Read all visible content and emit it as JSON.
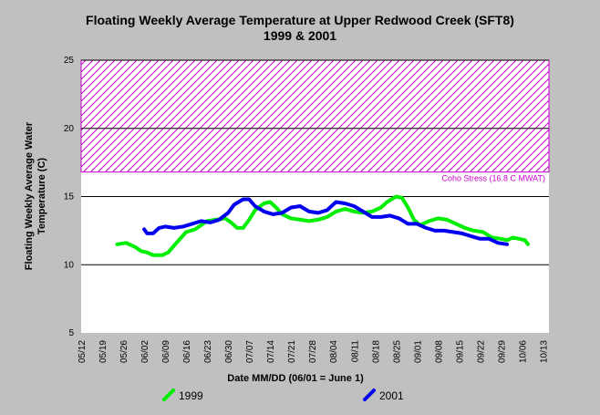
{
  "chart_data": {
    "type": "line",
    "title": "Floating Weekly Average Temperature at Upper Redwood Creek (SFT8)",
    "subtitle": "1999 & 2001",
    "xlabel": "Date MM/DD (06/01 = June 1)",
    "ylabel_lines": [
      "Floating Weekly Average Water",
      "Temperature (C)"
    ],
    "x_tick_labels": [
      "05/12",
      "05/19",
      "05/26",
      "06/02",
      "06/09",
      "06/16",
      "06/23",
      "06/30",
      "07/07",
      "07/14",
      "07/21",
      "07/28",
      "08/04",
      "08/11",
      "08/18",
      "08/25",
      "09/01",
      "09/08",
      "09/15",
      "09/22",
      "09/29",
      "10/06",
      "10/13"
    ],
    "x_range": [
      "05/12",
      "10/15"
    ],
    "ylim": [
      5,
      25
    ],
    "y_ticks": [
      5,
      10,
      15,
      20,
      25
    ],
    "y_tick_labels": [
      "5",
      "10",
      "15",
      "20",
      "25"
    ],
    "gridlines_y": [
      10,
      15,
      20,
      25
    ],
    "stress_band": {
      "from": 16.8,
      "to": 25,
      "label": "Coho Stress (16.8 C MWAT)",
      "color": "#cc00cc"
    },
    "series": [
      {
        "name": "1999",
        "color": "#00ee00",
        "points": [
          [
            "05/24",
            11.5
          ],
          [
            "05/27",
            11.6
          ],
          [
            "05/30",
            11.3
          ],
          [
            "06/01",
            11.0
          ],
          [
            "06/03",
            10.9
          ],
          [
            "06/05",
            10.7
          ],
          [
            "06/08",
            10.7
          ],
          [
            "06/10",
            10.9
          ],
          [
            "06/12",
            11.4
          ],
          [
            "06/14",
            11.9
          ],
          [
            "06/16",
            12.4
          ],
          [
            "06/19",
            12.6
          ],
          [
            "06/21",
            12.9
          ],
          [
            "06/23",
            13.2
          ],
          [
            "06/26",
            13.3
          ],
          [
            "06/29",
            13.4
          ],
          [
            "07/01",
            13.1
          ],
          [
            "07/03",
            12.7
          ],
          [
            "07/05",
            12.7
          ],
          [
            "07/07",
            13.3
          ],
          [
            "07/09",
            14.0
          ],
          [
            "07/12",
            14.5
          ],
          [
            "07/14",
            14.6
          ],
          [
            "07/16",
            14.2
          ],
          [
            "07/18",
            13.7
          ],
          [
            "07/21",
            13.4
          ],
          [
            "07/24",
            13.3
          ],
          [
            "07/27",
            13.2
          ],
          [
            "07/30",
            13.3
          ],
          [
            "08/02",
            13.5
          ],
          [
            "08/05",
            13.9
          ],
          [
            "08/08",
            14.1
          ],
          [
            "08/11",
            13.9
          ],
          [
            "08/14",
            13.8
          ],
          [
            "08/17",
            13.9
          ],
          [
            "08/20",
            14.2
          ],
          [
            "08/22",
            14.6
          ],
          [
            "08/25",
            15.0
          ],
          [
            "08/27",
            14.9
          ],
          [
            "08/29",
            14.2
          ],
          [
            "08/31",
            13.3
          ],
          [
            "09/02",
            12.9
          ],
          [
            "09/05",
            13.2
          ],
          [
            "09/08",
            13.4
          ],
          [
            "09/11",
            13.3
          ],
          [
            "09/14",
            13.0
          ],
          [
            "09/17",
            12.7
          ],
          [
            "09/20",
            12.5
          ],
          [
            "09/23",
            12.4
          ],
          [
            "09/26",
            12.0
          ],
          [
            "09/29",
            11.9
          ],
          [
            "10/01",
            11.8
          ],
          [
            "10/03",
            12.0
          ],
          [
            "10/05",
            11.9
          ],
          [
            "10/07",
            11.8
          ],
          [
            "10/08",
            11.5
          ]
        ]
      },
      {
        "name": "2001",
        "color": "#0000ee",
        "points": [
          [
            "06/02",
            12.6
          ],
          [
            "06/03",
            12.3
          ],
          [
            "06/05",
            12.3
          ],
          [
            "06/07",
            12.7
          ],
          [
            "06/09",
            12.8
          ],
          [
            "06/12",
            12.7
          ],
          [
            "06/15",
            12.8
          ],
          [
            "06/18",
            13.0
          ],
          [
            "06/21",
            13.2
          ],
          [
            "06/24",
            13.1
          ],
          [
            "06/27",
            13.3
          ],
          [
            "06/30",
            13.8
          ],
          [
            "07/02",
            14.4
          ],
          [
            "07/05",
            14.8
          ],
          [
            "07/07",
            14.8
          ],
          [
            "07/09",
            14.3
          ],
          [
            "07/12",
            13.9
          ],
          [
            "07/15",
            13.7
          ],
          [
            "07/18",
            13.8
          ],
          [
            "07/21",
            14.2
          ],
          [
            "07/24",
            14.3
          ],
          [
            "07/27",
            13.9
          ],
          [
            "07/30",
            13.8
          ],
          [
            "08/02",
            14.0
          ],
          [
            "08/05",
            14.6
          ],
          [
            "08/08",
            14.5
          ],
          [
            "08/11",
            14.3
          ],
          [
            "08/14",
            13.9
          ],
          [
            "08/17",
            13.5
          ],
          [
            "08/20",
            13.5
          ],
          [
            "08/23",
            13.6
          ],
          [
            "08/26",
            13.4
          ],
          [
            "08/29",
            13.0
          ],
          [
            "09/01",
            13.0
          ],
          [
            "09/04",
            12.7
          ],
          [
            "09/07",
            12.5
          ],
          [
            "09/10",
            12.5
          ],
          [
            "09/13",
            12.4
          ],
          [
            "09/16",
            12.3
          ],
          [
            "09/19",
            12.1
          ],
          [
            "09/22",
            11.9
          ],
          [
            "09/25",
            11.9
          ],
          [
            "09/28",
            11.6
          ],
          [
            "10/01",
            11.5
          ]
        ]
      }
    ],
    "legend_position": "bottom"
  },
  "colors": {
    "background": "#c0c0c0",
    "plot_area": "#ffffff",
    "gridline": "#000000"
  }
}
